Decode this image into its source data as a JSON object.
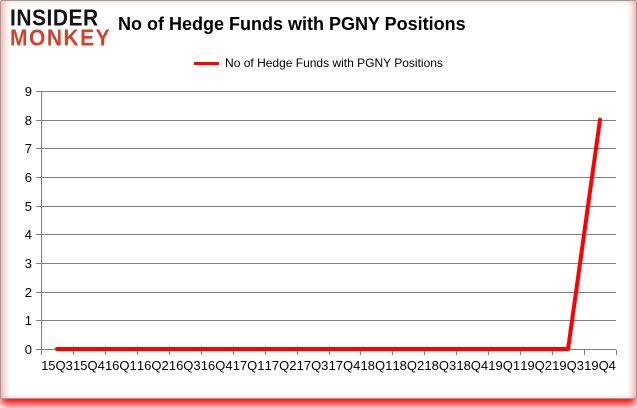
{
  "logo": {
    "line1": "INSIDER",
    "line2": "MONKEY"
  },
  "header": {
    "title": "No of Hedge Funds with PGNY Positions"
  },
  "legend": {
    "label": "No of Hedge Funds with PGNY Positions",
    "line_color": "#ff0000"
  },
  "colors": {
    "series_red": "#ff0000",
    "grid_gray": "#808080",
    "logo_black": "#161412",
    "logo_red": "#d5402b",
    "card_border": "#9d9d9d",
    "shadow_red": "#ff0000"
  },
  "chart_data": {
    "type": "line",
    "title": "No of Hedge Funds with PGNY Positions",
    "categories": [
      "15Q3",
      "15Q4",
      "16Q1",
      "16Q2",
      "16Q3",
      "16Q4",
      "17Q1",
      "17Q2",
      "17Q3",
      "17Q4",
      "18Q1",
      "18Q2",
      "18Q3",
      "18Q4",
      "19Q1",
      "19Q2",
      "19Q3",
      "19Q4"
    ],
    "series": [
      {
        "name": "No of Hedge Funds with PGNY Positions",
        "color": "#ff0000",
        "values": [
          0,
          0,
          0,
          0,
          0,
          0,
          0,
          0,
          0,
          0,
          0,
          0,
          0,
          0,
          0,
          0,
          0,
          8
        ]
      }
    ],
    "xlabel": "",
    "ylabel": "",
    "ylim": [
      0,
      9
    ],
    "yticks": [
      0,
      1,
      2,
      3,
      4,
      5,
      6,
      7,
      8,
      9
    ],
    "grid": "horizontal",
    "grid_color": "#808080",
    "legend_position": "top-center",
    "line_width": 4
  }
}
